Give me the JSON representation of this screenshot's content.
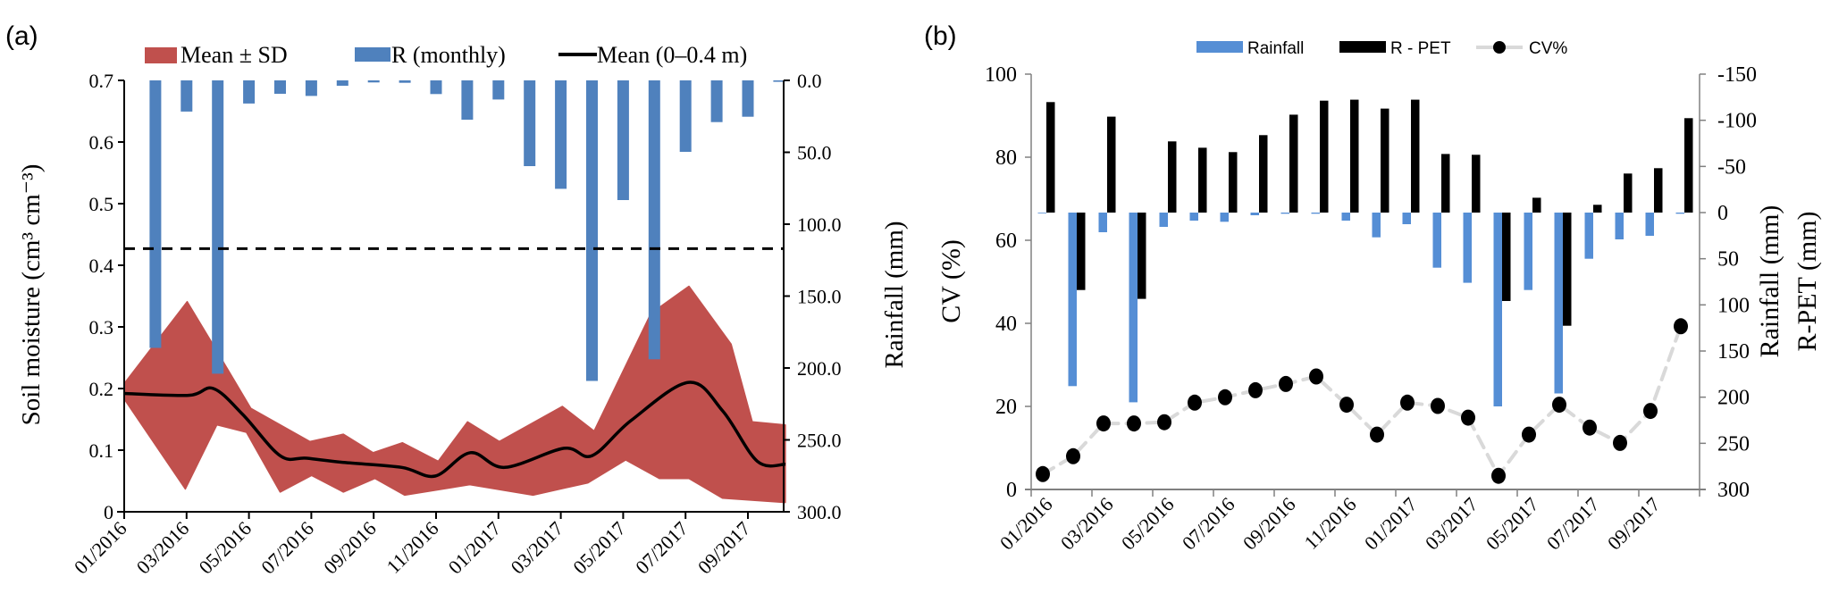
{
  "figure": {
    "panel_labels": [
      "(a)",
      "(b)"
    ]
  },
  "chart_data": [
    {
      "type": "area",
      "panel": "(a)",
      "title": "",
      "xlabel": "",
      "ylabel": "Soil moisture (cm³ cm⁻³)",
      "ylabel_right": "Rainfall (mm)",
      "ylim": [
        0,
        0.7
      ],
      "ylim_right": [
        0,
        300
      ],
      "right_axis_inverted": true,
      "yticks": [
        "0",
        "0.1",
        "0.2",
        "0.3",
        "0.4",
        "0.5",
        "0.6",
        "0.7"
      ],
      "yticks_right": [
        "0.0",
        "50.0",
        "100.0",
        "150.0",
        "200.0",
        "250.0",
        "300.0"
      ],
      "x_tick_labels": [
        "01/2016",
        "03/2016",
        "05/2016",
        "07/2016",
        "09/2016",
        "11/2016",
        "01/2017",
        "03/2017",
        "05/2017",
        "07/2017",
        "09/2017"
      ],
      "x_unit": "months since 01/2016",
      "xlim": [
        0,
        21.3
      ],
      "legend": [
        "Mean ± SD",
        "R (monthly)",
        "Mean (0–0.4 m)"
      ],
      "legend_position": "top-center",
      "reference_line": {
        "value": 0.427,
        "style": "dashed"
      },
      "colors": {
        "band": "#c0504d",
        "rain": "#4f81bd",
        "mean": "#000000",
        "axis": "#000000"
      },
      "series": [
        {
          "name": "R (monthly)",
          "type": "bar",
          "axis": "right",
          "categories": [
            "02/2016",
            "03/2016",
            "04/2016",
            "05/2016",
            "06/2016",
            "07/2016",
            "08/2016",
            "09/2016",
            "10/2016",
            "11/2016",
            "12/2016",
            "01/2017",
            "02/2017",
            "03/2017",
            "04/2017",
            "05/2017",
            "06/2017",
            "07/2017",
            "08/2017",
            "09/2017",
            "10/2017"
          ],
          "x": [
            1,
            2,
            3,
            4,
            5,
            6,
            7,
            8,
            9,
            10,
            11,
            12,
            13,
            14,
            15,
            16,
            17,
            18,
            19,
            20,
            21
          ],
          "values": [
            186,
            21.7,
            204,
            16.1,
            9.3,
            10.8,
            3.7,
            1.4,
            1.7,
            9.5,
            27.3,
            13.3,
            59.6,
            75.4,
            209,
            83.2,
            194,
            49.7,
            29.0,
            25.3,
            1.0
          ]
        },
        {
          "name": "Mean (0–0.4 m)",
          "type": "line",
          "x": [
            0,
            2.06,
            2.86,
            3.8,
            5.0,
            5.85,
            7.05,
            8.9,
            9.97,
            11.1,
            12.2,
            14.1,
            15.0,
            16.25,
            18.1,
            19.2,
            20.3,
            21.2
          ],
          "values": [
            0.192,
            0.189,
            0.2,
            0.158,
            0.091,
            0.087,
            0.08,
            0.072,
            0.058,
            0.096,
            0.072,
            0.103,
            0.091,
            0.148,
            0.21,
            0.163,
            0.082,
            0.077
          ]
        },
        {
          "name": "Mean + SD",
          "type": "band-upper",
          "x": [
            0,
            2.02,
            2.84,
            4.06,
            5.95,
            7.03,
            7.98,
            8.92,
            10.07,
            11.01,
            12.03,
            14.05,
            15.07,
            16.89,
            18.11,
            19.46,
            20.14,
            21.2
          ],
          "values": [
            0.208,
            0.341,
            0.272,
            0.168,
            0.114,
            0.126,
            0.096,
            0.112,
            0.082,
            0.146,
            0.114,
            0.171,
            0.131,
            0.322,
            0.366,
            0.272,
            0.146,
            0.141
          ]
        },
        {
          "name": "Mean - SD",
          "type": "band-lower",
          "x": [
            0,
            1.96,
            2.97,
            3.92,
            5.0,
            6.01,
            7.03,
            8.04,
            8.99,
            11.08,
            13.11,
            14.87,
            16.08,
            17.16,
            18.11,
            19.19,
            21.2
          ],
          "values": [
            0.183,
            0.037,
            0.141,
            0.129,
            0.032,
            0.059,
            0.032,
            0.054,
            0.027,
            0.044,
            0.027,
            0.047,
            0.084,
            0.054,
            0.054,
            0.022,
            0.015
          ]
        }
      ]
    },
    {
      "type": "bar",
      "panel": "(b)",
      "title": "",
      "xlabel": "",
      "ylabel": "CV (%)",
      "ylabel_right": [
        "Rainfall (mm)",
        "R-PET (mm)"
      ],
      "ylim": [
        0,
        100
      ],
      "ylim_right": [
        -150,
        300
      ],
      "right_axis_inverted": true,
      "yticks": [
        "0",
        "20",
        "40",
        "60",
        "80",
        "100"
      ],
      "yticks_right": [
        "-150",
        "-100",
        "-50",
        "0",
        "50",
        "100",
        "150",
        "200",
        "250",
        "300"
      ],
      "x_tick_labels": [
        "01/2016",
        "03/2016",
        "05/2016",
        "07/2016",
        "09/2016",
        "11/2016",
        "01/2017",
        "03/2017",
        "05/2017",
        "07/2017",
        "09/2017"
      ],
      "legend": [
        "Rainfall",
        "R - PET",
        "CV%"
      ],
      "legend_position": "top-center",
      "colors": {
        "rain": "#558ed5",
        "rpet": "#000000",
        "cv_marker": "#000000",
        "cv_line": "#d9d9d9",
        "axis": "#808080"
      },
      "categories": [
        "01/2016",
        "02/2016",
        "03/2016",
        "04/2016",
        "05/2016",
        "06/2016",
        "07/2016",
        "08/2016",
        "09/2016",
        "10/2016",
        "11/2016",
        "12/2016",
        "01/2017",
        "02/2017",
        "03/2017",
        "04/2017",
        "05/2017",
        "06/2017",
        "07/2017",
        "08/2017",
        "09/2017",
        "10/2017"
      ],
      "series": [
        {
          "name": "Rainfall",
          "type": "bar",
          "axis": "right",
          "values": [
            0.3,
            188,
            21.3,
            205.5,
            15.5,
            8.7,
            10.0,
            2.9,
            1.3,
            1.3,
            8.7,
            26.8,
            12.6,
            59.7,
            76.1,
            210,
            83.9,
            196,
            50.0,
            29.0,
            25.2,
            1.3
          ]
        },
        {
          "name": "R - PET",
          "type": "bar",
          "axis": "right",
          "values": [
            -119.7,
            83.9,
            -103.9,
            93.5,
            -77.1,
            -70.3,
            -65.5,
            -83.9,
            -106.1,
            -121.3,
            -122.3,
            -112.6,
            -122.3,
            -63.5,
            -62.6,
            95.8,
            -16.1,
            122.6,
            -8.4,
            -42.3,
            -48.1,
            -102.3
          ]
        },
        {
          "name": "CV%",
          "type": "line",
          "axis": "left",
          "values": [
            3.7,
            8.0,
            15.9,
            15.9,
            16.2,
            20.9,
            22.2,
            23.9,
            25.4,
            27.2,
            20.4,
            13.2,
            20.9,
            20.1,
            17.3,
            3.3,
            13.2,
            20.4,
            14.9,
            11.2,
            18.9,
            39.3
          ]
        }
      ]
    }
  ]
}
